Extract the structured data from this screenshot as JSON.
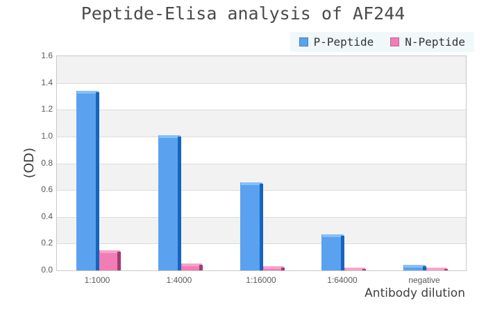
{
  "title": "Peptide-Elisa analysis of AF244",
  "legend": {
    "background": "#f0f8f9",
    "items": [
      {
        "label": "P-Peptide",
        "color": "#5aa1f0",
        "border": "#3f7fc0"
      },
      {
        "label": "N-Peptide",
        "color": "#f17db4",
        "border": "#c75f97"
      }
    ]
  },
  "chart_data": {
    "type": "bar",
    "title": "Peptide-Elisa analysis of AF244",
    "categories": [
      "1:1000",
      "1:4000",
      "1:16000",
      "1:64000",
      "negative"
    ],
    "series": [
      {
        "name": "P-Peptide",
        "values": [
          1.34,
          1.01,
          0.66,
          0.27,
          0.04
        ],
        "face": "#5aa1f0",
        "top": "#86c0f8",
        "side": "#1565c0"
      },
      {
        "name": "N-Peptide",
        "values": [
          0.15,
          0.05,
          0.03,
          0.02,
          0.02
        ],
        "face": "#f17db4",
        "top": "#f6a3cb",
        "side": "#a43a70"
      }
    ],
    "xlabel": "Antibody dilution",
    "ylabel": "(OD)",
    "ylim": [
      0,
      1.6
    ],
    "ytick_step": 0.2,
    "yticks": [
      "0.0",
      "0.2",
      "0.4",
      "0.6",
      "0.8",
      "1.0",
      "1.2",
      "1.4",
      "1.6"
    ],
    "grid": true,
    "band_colors": [
      "#f2f2f2",
      "#ffffff"
    ],
    "gridline_color": "#dbdbdb",
    "legend_position": "top-right"
  }
}
